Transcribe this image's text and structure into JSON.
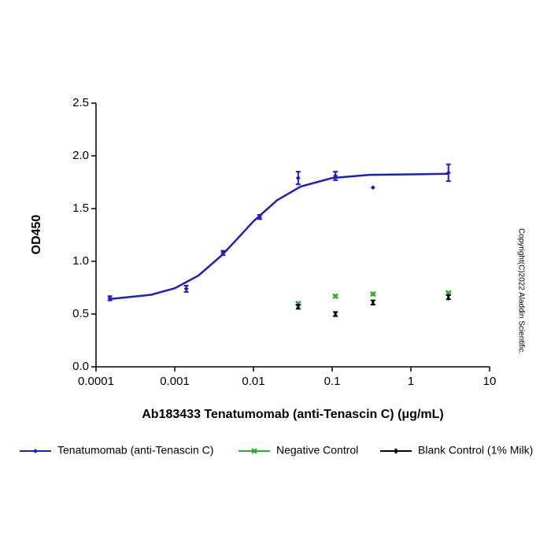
{
  "chart_data": {
    "type": "scatter",
    "xlabel": "Ab183433 Tenatumomab (anti-Tenascin C) (μg/mL)",
    "ylabel": "OD450",
    "annotation": "Copyright(C)2022 Aladdin Scientific.",
    "xscale": "log",
    "xlim": [
      0.0001,
      10
    ],
    "xticks": [
      0.0001,
      0.001,
      0.01,
      0.1,
      1,
      10
    ],
    "ylim": [
      0,
      2.5
    ],
    "yticks": [
      {
        "value": 0,
        "label": "0.0"
      },
      {
        "value": 0.5,
        "label": "0.5"
      },
      {
        "value": 1,
        "label": "1.0"
      },
      {
        "value": 1.5,
        "label": "1.5"
      },
      {
        "value": 2,
        "label": "2.0"
      },
      {
        "value": 2.5,
        "label": "2.5"
      }
    ],
    "legend": "bottom",
    "series": [
      {
        "name": "Tenatumomab (anti-Tenascin C)",
        "color": "#1f1fbf",
        "marker": "diamond",
        "x": [
          0.00015,
          0.0014,
          0.0041,
          0.012,
          0.037,
          0.11,
          0.33,
          3
        ],
        "values": [
          0.65,
          0.74,
          1.08,
          1.42,
          1.79,
          1.81,
          1.7,
          1.84
        ],
        "errors": [
          0.02,
          0.03,
          0.02,
          0.02,
          0.06,
          0.04,
          0,
          0.08
        ]
      },
      {
        "name": "Negative Control",
        "color": "#22b722",
        "marker": "x",
        "x": [
          0.037,
          0.11,
          0.33,
          3
        ],
        "values": [
          0.6,
          0.67,
          0.69,
          0.7
        ],
        "errors": [
          0.01,
          0.01,
          0.01,
          0.01
        ]
      },
      {
        "name": "Blank Control (1% Milk)",
        "color": "#000000",
        "marker": "dash",
        "x": [
          0.037,
          0.11,
          0.33,
          3
        ],
        "values": [
          0.57,
          0.5,
          0.61,
          0.66
        ],
        "errors": [
          0.02,
          0.02,
          0.02,
          0.02
        ]
      }
    ],
    "fit": {
      "color": "#1f1fbf",
      "x": [
        0.00015,
        0.0005,
        0.001,
        0.002,
        0.004,
        0.006,
        0.01,
        0.02,
        0.04,
        0.1,
        0.3,
        1,
        3
      ],
      "y": [
        0.643,
        0.683,
        0.745,
        0.865,
        1.06,
        1.2,
        1.38,
        1.58,
        1.71,
        1.79,
        1.82,
        1.825,
        1.83
      ]
    }
  }
}
